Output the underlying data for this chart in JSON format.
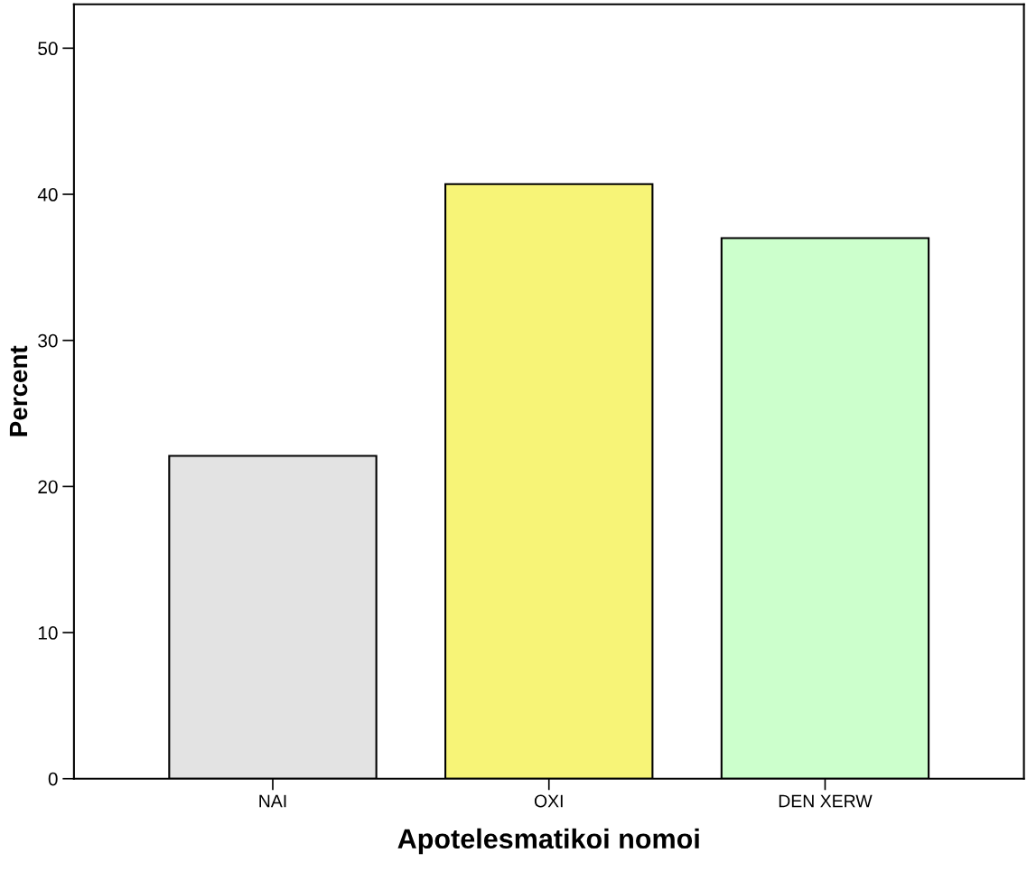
{
  "chart_data": {
    "type": "bar",
    "xlabel": "Apotelesmatikoi nomoi",
    "ylabel": "Percent",
    "categories": [
      "NAI",
      "OXI",
      "DEN XERW"
    ],
    "values": [
      22.1,
      40.7,
      37.0
    ],
    "colors": [
      "#e3e3e3",
      "#f7f477",
      "#ccffcc"
    ],
    "ylim": [
      0,
      53
    ],
    "yticks": [
      0,
      10,
      20,
      30,
      40,
      50
    ],
    "grid": false,
    "legend": false
  }
}
